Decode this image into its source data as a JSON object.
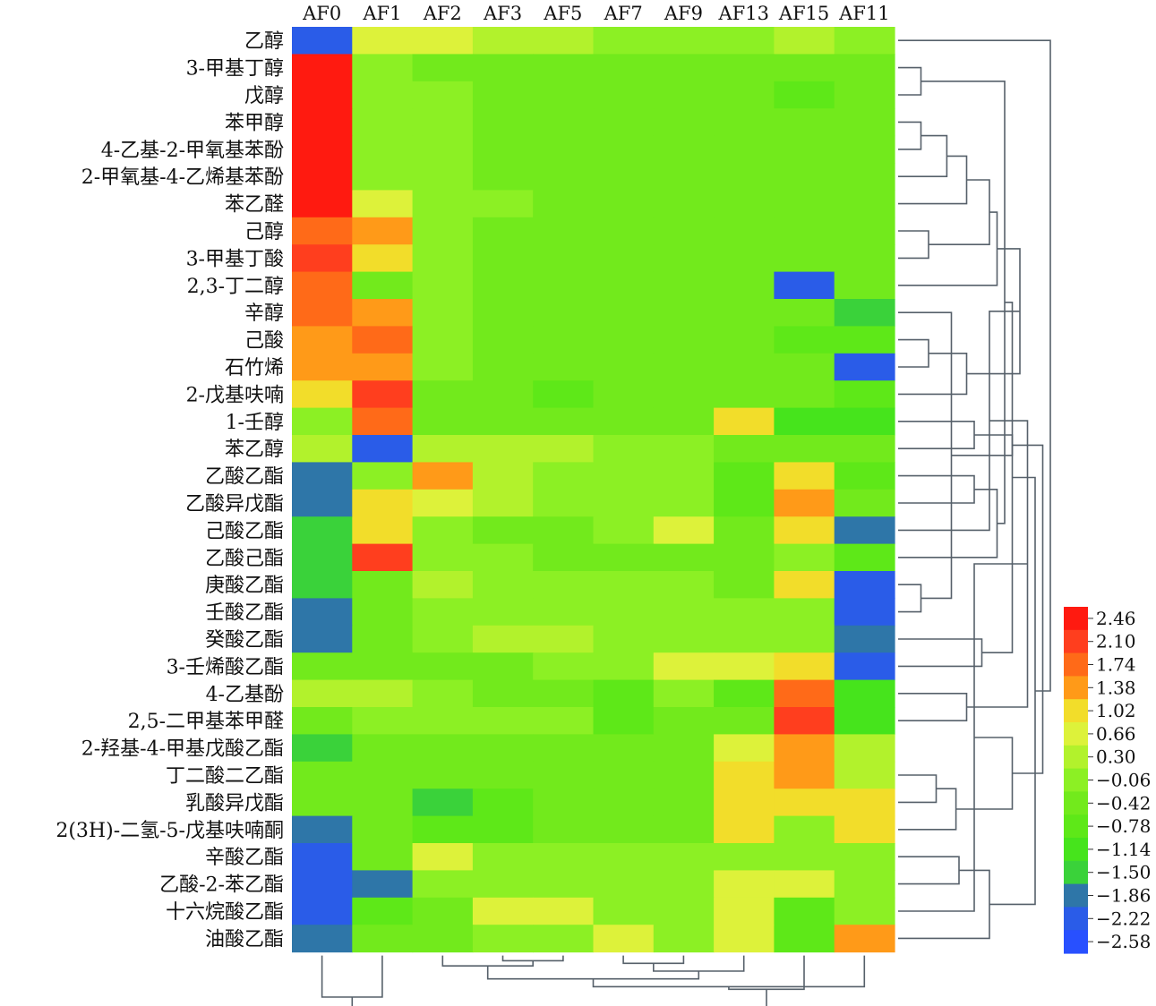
{
  "chart_data": {
    "type": "heatmap",
    "title": "",
    "columns": [
      "AF0",
      "AF1",
      "AF2",
      "AF3",
      "AF5",
      "AF7",
      "AF9",
      "AF13",
      "AF15",
      "AF11"
    ],
    "rows": [
      "乙醇",
      "3-甲基丁醇",
      "戊醇",
      "苯甲醇",
      "4-乙基-2-甲氧基苯酚",
      "2-甲氧基-4-乙烯基苯酚",
      "苯乙醛",
      "己醇",
      "3-甲基丁酸",
      "2,3-丁二醇",
      "辛醇",
      "己酸",
      "石竹烯",
      "2-戊基呋喃",
      "1-壬醇",
      "苯乙醇",
      "乙酸乙酯",
      "乙酸异戊酯",
      "己酸乙酯",
      "乙酸己酯",
      "庚酸乙酯",
      "壬酸乙酯",
      "癸酸乙酯",
      "3-壬烯酸乙酯",
      "4-乙基酚",
      "2,5-二甲基苯甲醛",
      "2-羟基-4-甲基戊酸乙酯",
      "丁二酸二乙酯",
      "乳酸异戊酯",
      "2(3H)-二氢-5-戊基呋喃酮",
      "辛酸乙酯",
      "乙酸-2-苯乙酯",
      "十六烷酸乙酯",
      "油酸乙酯"
    ],
    "values": [
      [
        -2.4,
        0.55,
        0.55,
        0.2,
        0.2,
        0.0,
        0.0,
        -0.2,
        0.3,
        -0.1
      ],
      [
        2.46,
        -0.2,
        -0.25,
        -0.3,
        -0.3,
        -0.3,
        -0.3,
        -0.35,
        -0.4,
        -0.35
      ],
      [
        2.46,
        0.1,
        -0.2,
        -0.3,
        -0.35,
        -0.35,
        -0.4,
        -0.4,
        -0.6,
        -0.4
      ],
      [
        2.46,
        0.1,
        -0.2,
        -0.3,
        -0.35,
        -0.35,
        -0.35,
        -0.35,
        -0.4,
        -0.35
      ],
      [
        2.46,
        0.05,
        -0.2,
        -0.3,
        -0.35,
        -0.35,
        -0.35,
        -0.35,
        -0.35,
        -0.35
      ],
      [
        2.46,
        -0.1,
        -0.2,
        -0.3,
        -0.35,
        -0.35,
        -0.35,
        -0.35,
        -0.35,
        -0.35
      ],
      [
        2.46,
        0.5,
        -0.1,
        -0.2,
        -0.3,
        -0.3,
        -0.3,
        -0.3,
        -0.35,
        -0.4
      ],
      [
        1.85,
        1.35,
        -0.2,
        -0.3,
        -0.35,
        -0.35,
        -0.35,
        -0.35,
        -0.35,
        -0.35
      ],
      [
        2.15,
        0.9,
        -0.2,
        -0.3,
        -0.35,
        -0.35,
        -0.35,
        -0.35,
        -0.35,
        -0.35
      ],
      [
        1.85,
        -0.3,
        0.0,
        -0.25,
        -0.3,
        -0.3,
        -0.25,
        -0.25,
        -2.4,
        -0.4
      ],
      [
        1.85,
        1.45,
        -0.2,
        -0.3,
        -0.35,
        -0.35,
        -0.35,
        -0.35,
        -0.5,
        -1.4
      ],
      [
        1.45,
        1.85,
        -0.2,
        -0.3,
        -0.35,
        -0.35,
        -0.35,
        -0.35,
        -0.6,
        -0.6
      ],
      [
        1.45,
        1.45,
        -0.2,
        -0.3,
        -0.35,
        -0.35,
        -0.35,
        -0.35,
        -0.35,
        -2.4
      ],
      [
        0.85,
        2.2,
        -0.3,
        -0.4,
        -0.6,
        -0.35,
        -0.35,
        -0.35,
        -0.5,
        -0.6
      ],
      [
        0.1,
        1.85,
        -0.3,
        -0.35,
        -0.35,
        -0.35,
        -0.35,
        0.9,
        -1.3,
        -1.3
      ],
      [
        0.35,
        -2.4,
        0.45,
        0.45,
        0.45,
        -0.1,
        -0.2,
        -0.35,
        -0.4,
        -0.4
      ],
      [
        -1.9,
        -0.2,
        1.4,
        0.2,
        0.1,
        -0.2,
        -0.2,
        -0.7,
        0.9,
        -0.6
      ],
      [
        -1.9,
        0.95,
        0.5,
        0.2,
        0.1,
        -0.2,
        -0.2,
        -0.6,
        1.35,
        -0.5
      ],
      [
        -1.35,
        0.95,
        0.1,
        -0.3,
        -0.3,
        0.1,
        0.5,
        -0.4,
        0.9,
        -1.9
      ],
      [
        -1.35,
        2.2,
        0.1,
        -0.2,
        -0.35,
        -0.35,
        -0.35,
        -0.35,
        0.1,
        -0.6
      ],
      [
        -1.35,
        -0.3,
        0.4,
        0.1,
        -0.1,
        -0.1,
        -0.1,
        -0.35,
        0.9,
        -2.4
      ],
      [
        -1.9,
        -0.3,
        -0.1,
        -0.1,
        -0.1,
        -0.1,
        0.1,
        0.1,
        0.1,
        -2.4
      ],
      [
        -1.9,
        -0.5,
        0.1,
        0.45,
        0.45,
        0.1,
        0.1,
        0.1,
        0.1,
        -1.9
      ],
      [
        -0.35,
        -0.35,
        -0.3,
        -0.3,
        -0.1,
        -0.2,
        0.5,
        0.5,
        0.9,
        -2.4
      ],
      [
        0.45,
        0.45,
        -0.2,
        -0.3,
        -0.35,
        -0.7,
        -0.1,
        -0.6,
        1.85,
        -1.3
      ],
      [
        -0.3,
        0.1,
        -0.2,
        0.1,
        0.1,
        -0.7,
        -0.35,
        -0.35,
        2.2,
        -1.3
      ],
      [
        -1.35,
        -0.35,
        -0.3,
        -0.4,
        -0.3,
        -0.35,
        -0.35,
        0.5,
        1.45,
        0.45
      ],
      [
        -0.35,
        -0.35,
        -0.3,
        -0.35,
        -0.4,
        -0.35,
        -0.35,
        0.9,
        1.45,
        0.45
      ],
      [
        -0.35,
        -0.35,
        -1.35,
        -0.6,
        -0.4,
        -0.35,
        -0.35,
        0.9,
        0.9,
        0.9
      ],
      [
        -1.9,
        -0.35,
        -0.7,
        -0.6,
        -0.3,
        -0.35,
        -0.35,
        0.9,
        0.1,
        0.9
      ],
      [
        -2.4,
        -0.35,
        0.5,
        0.1,
        0.1,
        -0.1,
        0.1,
        -0.2,
        0.1,
        0.1
      ],
      [
        -2.4,
        -1.9,
        0.1,
        0.1,
        0.1,
        -0.1,
        -0.1,
        0.5,
        0.5,
        0.1
      ],
      [
        -2.4,
        -0.6,
        -0.35,
        0.5,
        0.5,
        0.1,
        0.1,
        0.5,
        -0.6,
        0.1
      ],
      [
        -1.9,
        -0.35,
        -0.35,
        -0.2,
        -0.2,
        0.5,
        -0.2,
        0.5,
        -0.6,
        1.4
      ]
    ],
    "colorbar": {
      "ticks": [
        "2.46",
        "2.10",
        "1.74",
        "1.38",
        "1.02",
        "0.66",
        "0.30",
        "−0.06",
        "−0.42",
        "−0.78",
        "−1.14",
        "−1.50",
        "−1.86",
        "−2.22",
        "−2.58"
      ],
      "colors": [
        "#ff1a10",
        "#ff3e1e",
        "#ff6a18",
        "#ff9a18",
        "#f2dd2a",
        "#ddf23a",
        "#b2f22c",
        "#8cf024",
        "#72ea1c",
        "#5ee818",
        "#46e41c",
        "#3ad23a",
        "#2e76a8",
        "#2a5ce8",
        "#2850ff"
      ],
      "max": 2.46,
      "min": -2.58
    },
    "dendrogram_rows": [
      [
        1,
        2,
        0.15
      ],
      [
        3,
        4,
        0.15
      ],
      [
        20,
        21,
        0.15
      ],
      [
        7,
        8,
        0.2
      ],
      [
        11,
        12,
        0.2
      ],
      [
        10,
        36,
        0.35
      ],
      [
        38,
        13,
        0.45
      ],
      [
        27,
        28,
        0.25
      ],
      [
        41,
        29,
        0.38
      ],
      [
        35,
        5,
        0.32
      ],
      [
        43,
        6,
        0.45
      ],
      [
        44,
        37,
        0.6
      ],
      [
        14,
        15,
        0.5
      ],
      [
        45,
        9,
        0.65
      ],
      [
        39,
        46,
        0.75
      ],
      [
        47,
        40,
        0.8
      ],
      [
        16,
        17,
        0.5
      ],
      [
        49,
        18,
        0.6
      ],
      [
        50,
        19,
        0.65
      ],
      [
        22,
        23,
        0.55
      ],
      [
        34,
        52,
        0.7
      ],
      [
        24,
        25,
        0.45
      ],
      [
        53,
        54,
        0.75
      ],
      [
        51,
        55,
        0.85
      ],
      [
        30,
        31,
        0.4
      ],
      [
        57,
        32,
        0.5
      ],
      [
        58,
        33,
        0.6
      ],
      [
        42,
        59,
        0.75
      ],
      [
        56,
        60,
        0.9
      ],
      [
        48,
        61,
        0.95
      ],
      [
        0,
        62,
        1.0
      ]
    ],
    "dendrogram_cols": [
      [
        3,
        4,
        0.1
      ],
      [
        5,
        6,
        0.15
      ],
      [
        2,
        10,
        0.2
      ],
      [
        11,
        7,
        0.3
      ],
      [
        12,
        13,
        0.45
      ],
      [
        14,
        9,
        0.6
      ],
      [
        15,
        8,
        0.65
      ],
      [
        0,
        1,
        0.8
      ],
      [
        16,
        17,
        1.0
      ]
    ]
  }
}
